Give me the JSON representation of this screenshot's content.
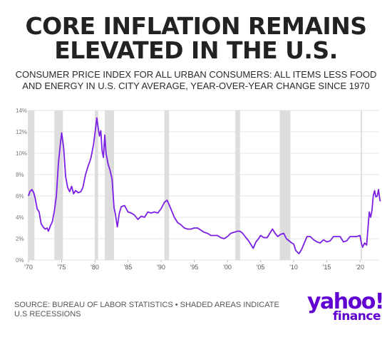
{
  "header": {
    "title_line1": "CORE INFLATION REMAINS",
    "title_line2": "ELEVATED IN THE U.S.",
    "subtitle_line1": "CONSUMER PRICE INDEX FOR ALL URBAN CONSUMERS: ALL ITEMS LESS FOOD",
    "subtitle_line2": "AND ENERGY IN U.S. CITY AVERAGE, YEAR-OVER-YEAR CHANGE SINCE 1970"
  },
  "footer": {
    "source": "SOURCE: BUREAU OF LABOR STATISTICS • SHADED AREAS INDICATE U.S RECESSIONS"
  },
  "logo": {
    "main": "yahoo!",
    "sub": "finance"
  },
  "colors": {
    "line": "#7c1fe6",
    "recession": "#dddddd",
    "grid": "#e6e6e6",
    "brand": "#6001d2"
  },
  "chart_data": {
    "type": "line",
    "title": "CORE INFLATION REMAINS ELEVATED IN THE U.S.",
    "xlim": [
      1970,
      2023
    ],
    "ylim": [
      0,
      14
    ],
    "yticks": [
      0,
      2,
      4,
      6,
      8,
      10,
      12,
      14
    ],
    "ytick_labels": [
      "0%",
      "2%",
      "4%",
      "6%",
      "8%",
      "10%",
      "12%",
      "14%"
    ],
    "xticks": [
      1970,
      1975,
      1980,
      1985,
      1990,
      1995,
      2000,
      2005,
      2010,
      2015,
      2020
    ],
    "xtick_labels": [
      "'70",
      "'75",
      "'80",
      "'85",
      "'90",
      "'95",
      "'00",
      "'05",
      "'10",
      "'15",
      "'20"
    ],
    "grid": true,
    "recessions": [
      [
        1969.9,
        1970.9
      ],
      [
        1973.9,
        1975.2
      ],
      [
        1980.0,
        1980.5
      ],
      [
        1981.5,
        1982.9
      ],
      [
        1990.5,
        1991.2
      ],
      [
        2001.2,
        2001.9
      ],
      [
        2007.9,
        2009.5
      ],
      [
        2020.1,
        2020.3
      ]
    ],
    "series": [
      {
        "points": [
          [
            1970.0,
            6.0
          ],
          [
            1970.2,
            6.4
          ],
          [
            1970.5,
            6.6
          ],
          [
            1970.8,
            6.3
          ],
          [
            1971.0,
            5.8
          ],
          [
            1971.3,
            4.8
          ],
          [
            1971.6,
            4.5
          ],
          [
            1971.9,
            3.4
          ],
          [
            1972.2,
            3.1
          ],
          [
            1972.5,
            2.9
          ],
          [
            1972.8,
            3.0
          ],
          [
            1973.0,
            2.7
          ],
          [
            1973.3,
            3.2
          ],
          [
            1973.6,
            3.6
          ],
          [
            1973.9,
            4.6
          ],
          [
            1974.2,
            6.0
          ],
          [
            1974.5,
            9.0
          ],
          [
            1974.8,
            10.8
          ],
          [
            1975.0,
            11.9
          ],
          [
            1975.3,
            10.5
          ],
          [
            1975.6,
            7.8
          ],
          [
            1975.9,
            6.8
          ],
          [
            1976.2,
            6.4
          ],
          [
            1976.5,
            6.9
          ],
          [
            1976.8,
            6.2
          ],
          [
            1977.1,
            6.5
          ],
          [
            1977.5,
            6.3
          ],
          [
            1977.9,
            6.4
          ],
          [
            1978.2,
            6.8
          ],
          [
            1978.6,
            8.0
          ],
          [
            1979.0,
            8.8
          ],
          [
            1979.4,
            9.5
          ],
          [
            1979.8,
            10.8
          ],
          [
            1980.1,
            12.2
          ],
          [
            1980.3,
            13.3
          ],
          [
            1980.5,
            12.4
          ],
          [
            1980.7,
            11.6
          ],
          [
            1980.9,
            12.1
          ],
          [
            1981.1,
            10.2
          ],
          [
            1981.3,
            9.6
          ],
          [
            1981.5,
            11.7
          ],
          [
            1981.7,
            10.0
          ],
          [
            1982.0,
            9.0
          ],
          [
            1982.3,
            8.4
          ],
          [
            1982.6,
            7.6
          ],
          [
            1982.9,
            4.9
          ],
          [
            1983.1,
            4.3
          ],
          [
            1983.4,
            3.1
          ],
          [
            1983.7,
            4.4
          ],
          [
            1984.0,
            5.0
          ],
          [
            1984.5,
            5.1
          ],
          [
            1985.0,
            4.5
          ],
          [
            1985.5,
            4.4
          ],
          [
            1986.0,
            4.2
          ],
          [
            1986.5,
            3.8
          ],
          [
            1987.0,
            4.1
          ],
          [
            1987.5,
            4.0
          ],
          [
            1988.0,
            4.5
          ],
          [
            1988.5,
            4.4
          ],
          [
            1989.0,
            4.5
          ],
          [
            1989.5,
            4.4
          ],
          [
            1990.0,
            4.8
          ],
          [
            1990.5,
            5.4
          ],
          [
            1990.9,
            5.6
          ],
          [
            1991.2,
            5.2
          ],
          [
            1991.6,
            4.6
          ],
          [
            1992.0,
            4.0
          ],
          [
            1992.5,
            3.5
          ],
          [
            1993.0,
            3.3
          ],
          [
            1993.5,
            3.0
          ],
          [
            1994.0,
            2.9
          ],
          [
            1994.5,
            2.9
          ],
          [
            1995.0,
            3.0
          ],
          [
            1995.5,
            3.0
          ],
          [
            1996.0,
            2.8
          ],
          [
            1996.5,
            2.6
          ],
          [
            1997.0,
            2.5
          ],
          [
            1997.5,
            2.3
          ],
          [
            1998.0,
            2.3
          ],
          [
            1998.5,
            2.3
          ],
          [
            1999.0,
            2.1
          ],
          [
            1999.5,
            2.0
          ],
          [
            2000.0,
            2.2
          ],
          [
            2000.5,
            2.5
          ],
          [
            2001.0,
            2.6
          ],
          [
            2001.5,
            2.7
          ],
          [
            2001.9,
            2.7
          ],
          [
            2002.3,
            2.5
          ],
          [
            2002.8,
            2.1
          ],
          [
            2003.2,
            1.8
          ],
          [
            2003.6,
            1.4
          ],
          [
            2003.9,
            1.1
          ],
          [
            2004.3,
            1.7
          ],
          [
            2004.7,
            2.0
          ],
          [
            2005.0,
            2.3
          ],
          [
            2005.5,
            2.1
          ],
          [
            2006.0,
            2.1
          ],
          [
            2006.5,
            2.6
          ],
          [
            2006.8,
            2.9
          ],
          [
            2007.2,
            2.5
          ],
          [
            2007.6,
            2.2
          ],
          [
            2008.0,
            2.4
          ],
          [
            2008.5,
            2.5
          ],
          [
            2008.9,
            2.0
          ],
          [
            2009.3,
            1.8
          ],
          [
            2009.7,
            1.6
          ],
          [
            2010.0,
            1.5
          ],
          [
            2010.3,
            0.9
          ],
          [
            2010.8,
            0.6
          ],
          [
            2011.2,
            1.0
          ],
          [
            2011.6,
            1.6
          ],
          [
            2012.0,
            2.2
          ],
          [
            2012.5,
            2.2
          ],
          [
            2013.0,
            1.9
          ],
          [
            2013.5,
            1.7
          ],
          [
            2014.0,
            1.6
          ],
          [
            2014.5,
            1.9
          ],
          [
            2015.0,
            1.7
          ],
          [
            2015.5,
            1.8
          ],
          [
            2016.0,
            2.2
          ],
          [
            2016.5,
            2.2
          ],
          [
            2017.0,
            2.2
          ],
          [
            2017.5,
            1.7
          ],
          [
            2018.0,
            1.8
          ],
          [
            2018.5,
            2.2
          ],
          [
            2019.0,
            2.2
          ],
          [
            2019.5,
            2.2
          ],
          [
            2020.0,
            2.3
          ],
          [
            2020.2,
            1.6
          ],
          [
            2020.4,
            1.2
          ],
          [
            2020.7,
            1.6
          ],
          [
            2021.0,
            1.4
          ],
          [
            2021.2,
            3.0
          ],
          [
            2021.4,
            4.5
          ],
          [
            2021.6,
            4.0
          ],
          [
            2021.8,
            4.6
          ],
          [
            2022.0,
            6.0
          ],
          [
            2022.2,
            6.5
          ],
          [
            2022.4,
            5.9
          ],
          [
            2022.6,
            6.0
          ],
          [
            2022.8,
            6.6
          ],
          [
            2023.0,
            5.6
          ],
          [
            2023.1,
            5.5
          ]
        ]
      }
    ]
  }
}
